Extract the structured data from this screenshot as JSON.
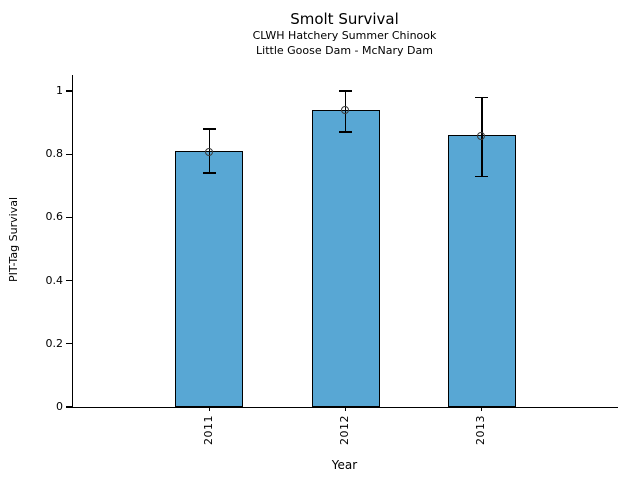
{
  "chart_data": {
    "type": "bar",
    "title": "Smolt Survival",
    "subtitle_line1": "CLWH Hatchery Summer Chinook",
    "subtitle_line2": "Little Goose Dam - McNary Dam",
    "xlabel": "Year",
    "ylabel": "PIT-Tag Survival",
    "categories": [
      "2011",
      "2012",
      "2013"
    ],
    "values": [
      0.81,
      0.94,
      0.86
    ],
    "error_low": [
      0.74,
      0.87,
      0.73
    ],
    "error_high": [
      0.88,
      1.0,
      0.98
    ],
    "yticks": [
      0,
      0.2,
      0.4,
      0.6,
      0.8,
      1
    ],
    "ytick_labels": [
      "0",
      "0.2",
      "0.4",
      "0.6",
      "0.8",
      "1"
    ],
    "ylim": [
      0,
      1.05
    ],
    "grid": false,
    "legend": null,
    "marker": "open-circle",
    "bar_color": "#58a7d4",
    "bar_edge_color": "#000000",
    "error_color": "#000000",
    "text_color": "#000000",
    "background_color": "#ffffff"
  }
}
